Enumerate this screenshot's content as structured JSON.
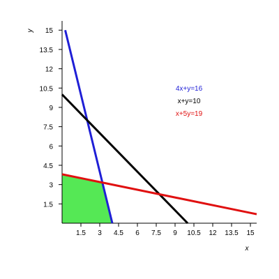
{
  "chart_data": {
    "type": "line",
    "xlabel": "x",
    "ylabel": "y",
    "xlim": [
      0,
      15.5
    ],
    "ylim": [
      0,
      15.5
    ],
    "x_ticks": [
      1.5,
      3,
      4.5,
      6,
      7.5,
      9,
      10.5,
      12,
      13.5,
      15
    ],
    "x_tick_labels": [
      "1.5",
      "3",
      "4.5",
      "6",
      "7.5",
      "9",
      "10.5",
      "12",
      "13.5",
      "15"
    ],
    "y_ticks": [
      1.5,
      3,
      4.5,
      6,
      7.5,
      9,
      10.5,
      12,
      13.5,
      15
    ],
    "y_tick_labels": [
      "1.5",
      "3",
      "4.5",
      "6",
      "7.5",
      "9",
      "10.5",
      "12",
      "13.5",
      "15"
    ],
    "grid": false,
    "legend": "inside, upper-right",
    "series": [
      {
        "name": "4x+y=16",
        "color": "#1f1fd6",
        "points": [
          [
            0.25,
            15
          ],
          [
            4,
            0
          ]
        ]
      },
      {
        "name": "x+y=10",
        "color": "#000000",
        "points": [
          [
            0,
            10
          ],
          [
            10,
            0
          ]
        ]
      },
      {
        "name": "x+5y=19",
        "color": "#e01010",
        "points": [
          [
            0,
            3.8
          ],
          [
            15.5,
            0.7
          ]
        ]
      }
    ],
    "feasible_region": {
      "color": "#55e855",
      "polygon": [
        [
          0,
          0
        ],
        [
          0,
          3.8
        ],
        [
          3.2,
          3.2
        ],
        [
          4,
          0
        ]
      ]
    }
  }
}
